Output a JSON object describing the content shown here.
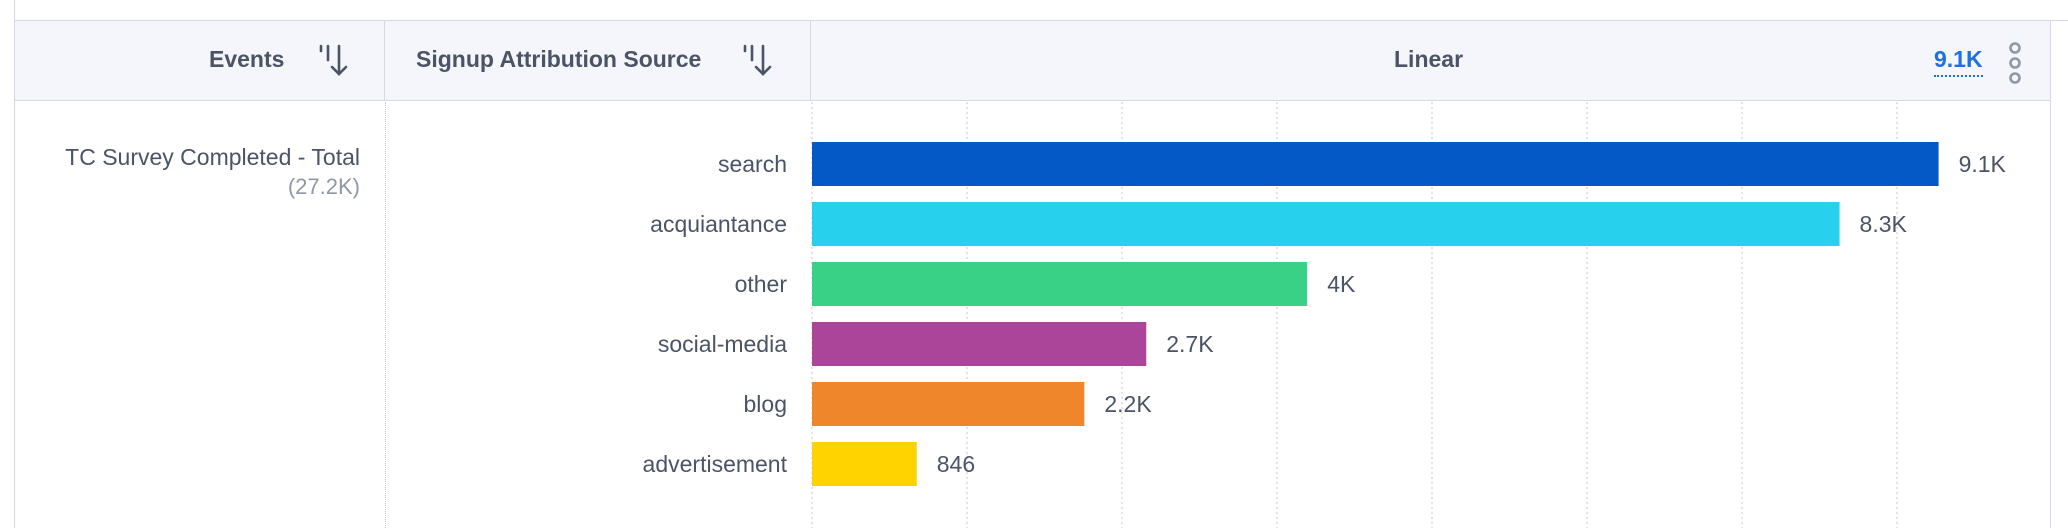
{
  "header": {
    "events_label": "Events",
    "attribution_label": "Signup Attribution Source",
    "linear_label": "Linear",
    "max_value": "9.1K"
  },
  "event": {
    "name": "TC Survey Completed - Total",
    "total": "(27.2K)"
  },
  "chart_data": {
    "type": "bar",
    "orientation": "horizontal",
    "categories": [
      "search",
      "acquiantance",
      "other",
      "social-media",
      "blog",
      "advertisement"
    ],
    "values": [
      9100,
      8300,
      4000,
      2700,
      2200,
      846
    ],
    "value_labels": [
      "9.1K",
      "8.3K",
      "4K",
      "2.7K",
      "2.2K",
      "846"
    ],
    "colors": [
      "#0459c7",
      "#27d0ec",
      "#38d185",
      "#aa4599",
      "#f0862b",
      "#ffd300"
    ],
    "xlim": [
      0,
      10000
    ],
    "grid": true,
    "gridline_count": 8
  }
}
